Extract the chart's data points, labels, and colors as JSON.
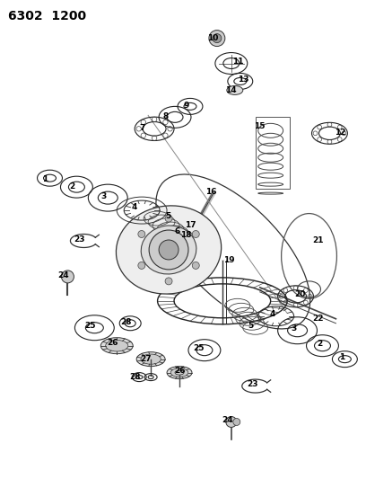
{
  "title": "6302  1200",
  "bg_color": "#ffffff",
  "fig_width": 4.08,
  "fig_height": 5.33,
  "dpi": 100,
  "line_color": "#222222",
  "lw": 0.8
}
